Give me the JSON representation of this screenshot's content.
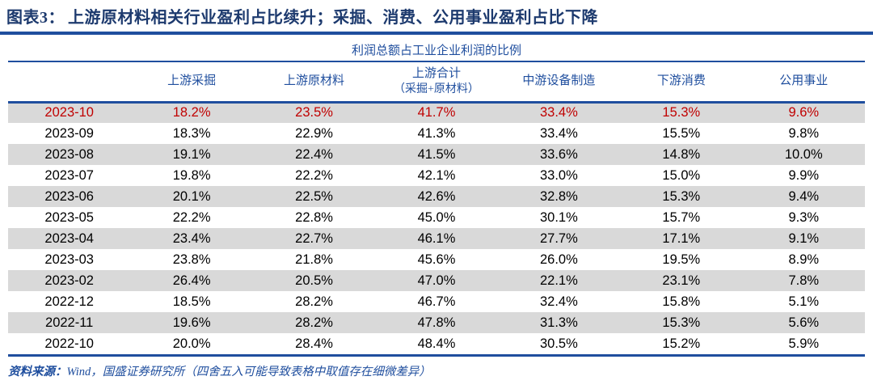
{
  "figure": {
    "label": "图表3：",
    "title": "上游原材料相关行业盈利占比续升；采掘、消费、公用事业盈利占比下降"
  },
  "chart_data": {
    "type": "table",
    "title": "利润总额占工业企业利润的比例",
    "columns": [
      {
        "label": ""
      },
      {
        "label": "上游采掘"
      },
      {
        "label": "上游原材料"
      },
      {
        "label": "上游合计",
        "sub": "（采掘+原材料）"
      },
      {
        "label": "中游设备制造"
      },
      {
        "label": "下游消费"
      },
      {
        "label": "公用事业"
      }
    ],
    "highlight_row_index": 0,
    "rows": [
      [
        "2023-10",
        "18.2%",
        "23.5%",
        "41.7%",
        "33.4%",
        "15.3%",
        "9.6%"
      ],
      [
        "2023-09",
        "18.3%",
        "22.9%",
        "41.3%",
        "33.4%",
        "15.5%",
        "9.8%"
      ],
      [
        "2023-08",
        "19.1%",
        "22.4%",
        "41.5%",
        "33.6%",
        "14.8%",
        "10.0%"
      ],
      [
        "2023-07",
        "19.8%",
        "22.2%",
        "42.1%",
        "33.0%",
        "15.0%",
        "9.9%"
      ],
      [
        "2023-06",
        "20.1%",
        "22.5%",
        "42.6%",
        "32.8%",
        "15.3%",
        "9.4%"
      ],
      [
        "2023-05",
        "22.2%",
        "22.8%",
        "45.0%",
        "30.1%",
        "15.7%",
        "9.3%"
      ],
      [
        "2023-04",
        "23.4%",
        "22.7%",
        "46.1%",
        "27.7%",
        "17.1%",
        "9.1%"
      ],
      [
        "2023-03",
        "23.8%",
        "21.8%",
        "45.6%",
        "26.0%",
        "19.5%",
        "8.9%"
      ],
      [
        "2023-02",
        "26.4%",
        "20.5%",
        "47.0%",
        "22.1%",
        "23.1%",
        "7.8%"
      ],
      [
        "2022-12",
        "18.5%",
        "28.2%",
        "46.7%",
        "32.4%",
        "15.8%",
        "5.1%"
      ],
      [
        "2022-11",
        "19.6%",
        "28.2%",
        "47.8%",
        "31.3%",
        "15.3%",
        "5.6%"
      ],
      [
        "2022-10",
        "20.0%",
        "28.4%",
        "48.4%",
        "30.5%",
        "15.2%",
        "5.9%"
      ]
    ]
  },
  "footer": {
    "source_label": "资料来源：",
    "source_text": "Wind，国盛证券研究所（四舍五入可能导致表格中取值存在细微差异）"
  },
  "colors": {
    "title_navy": "#1d3a6e",
    "table_blue": "#1f4e9e",
    "highlight_red": "#c00000",
    "band_gray": "#d9d9d9"
  }
}
